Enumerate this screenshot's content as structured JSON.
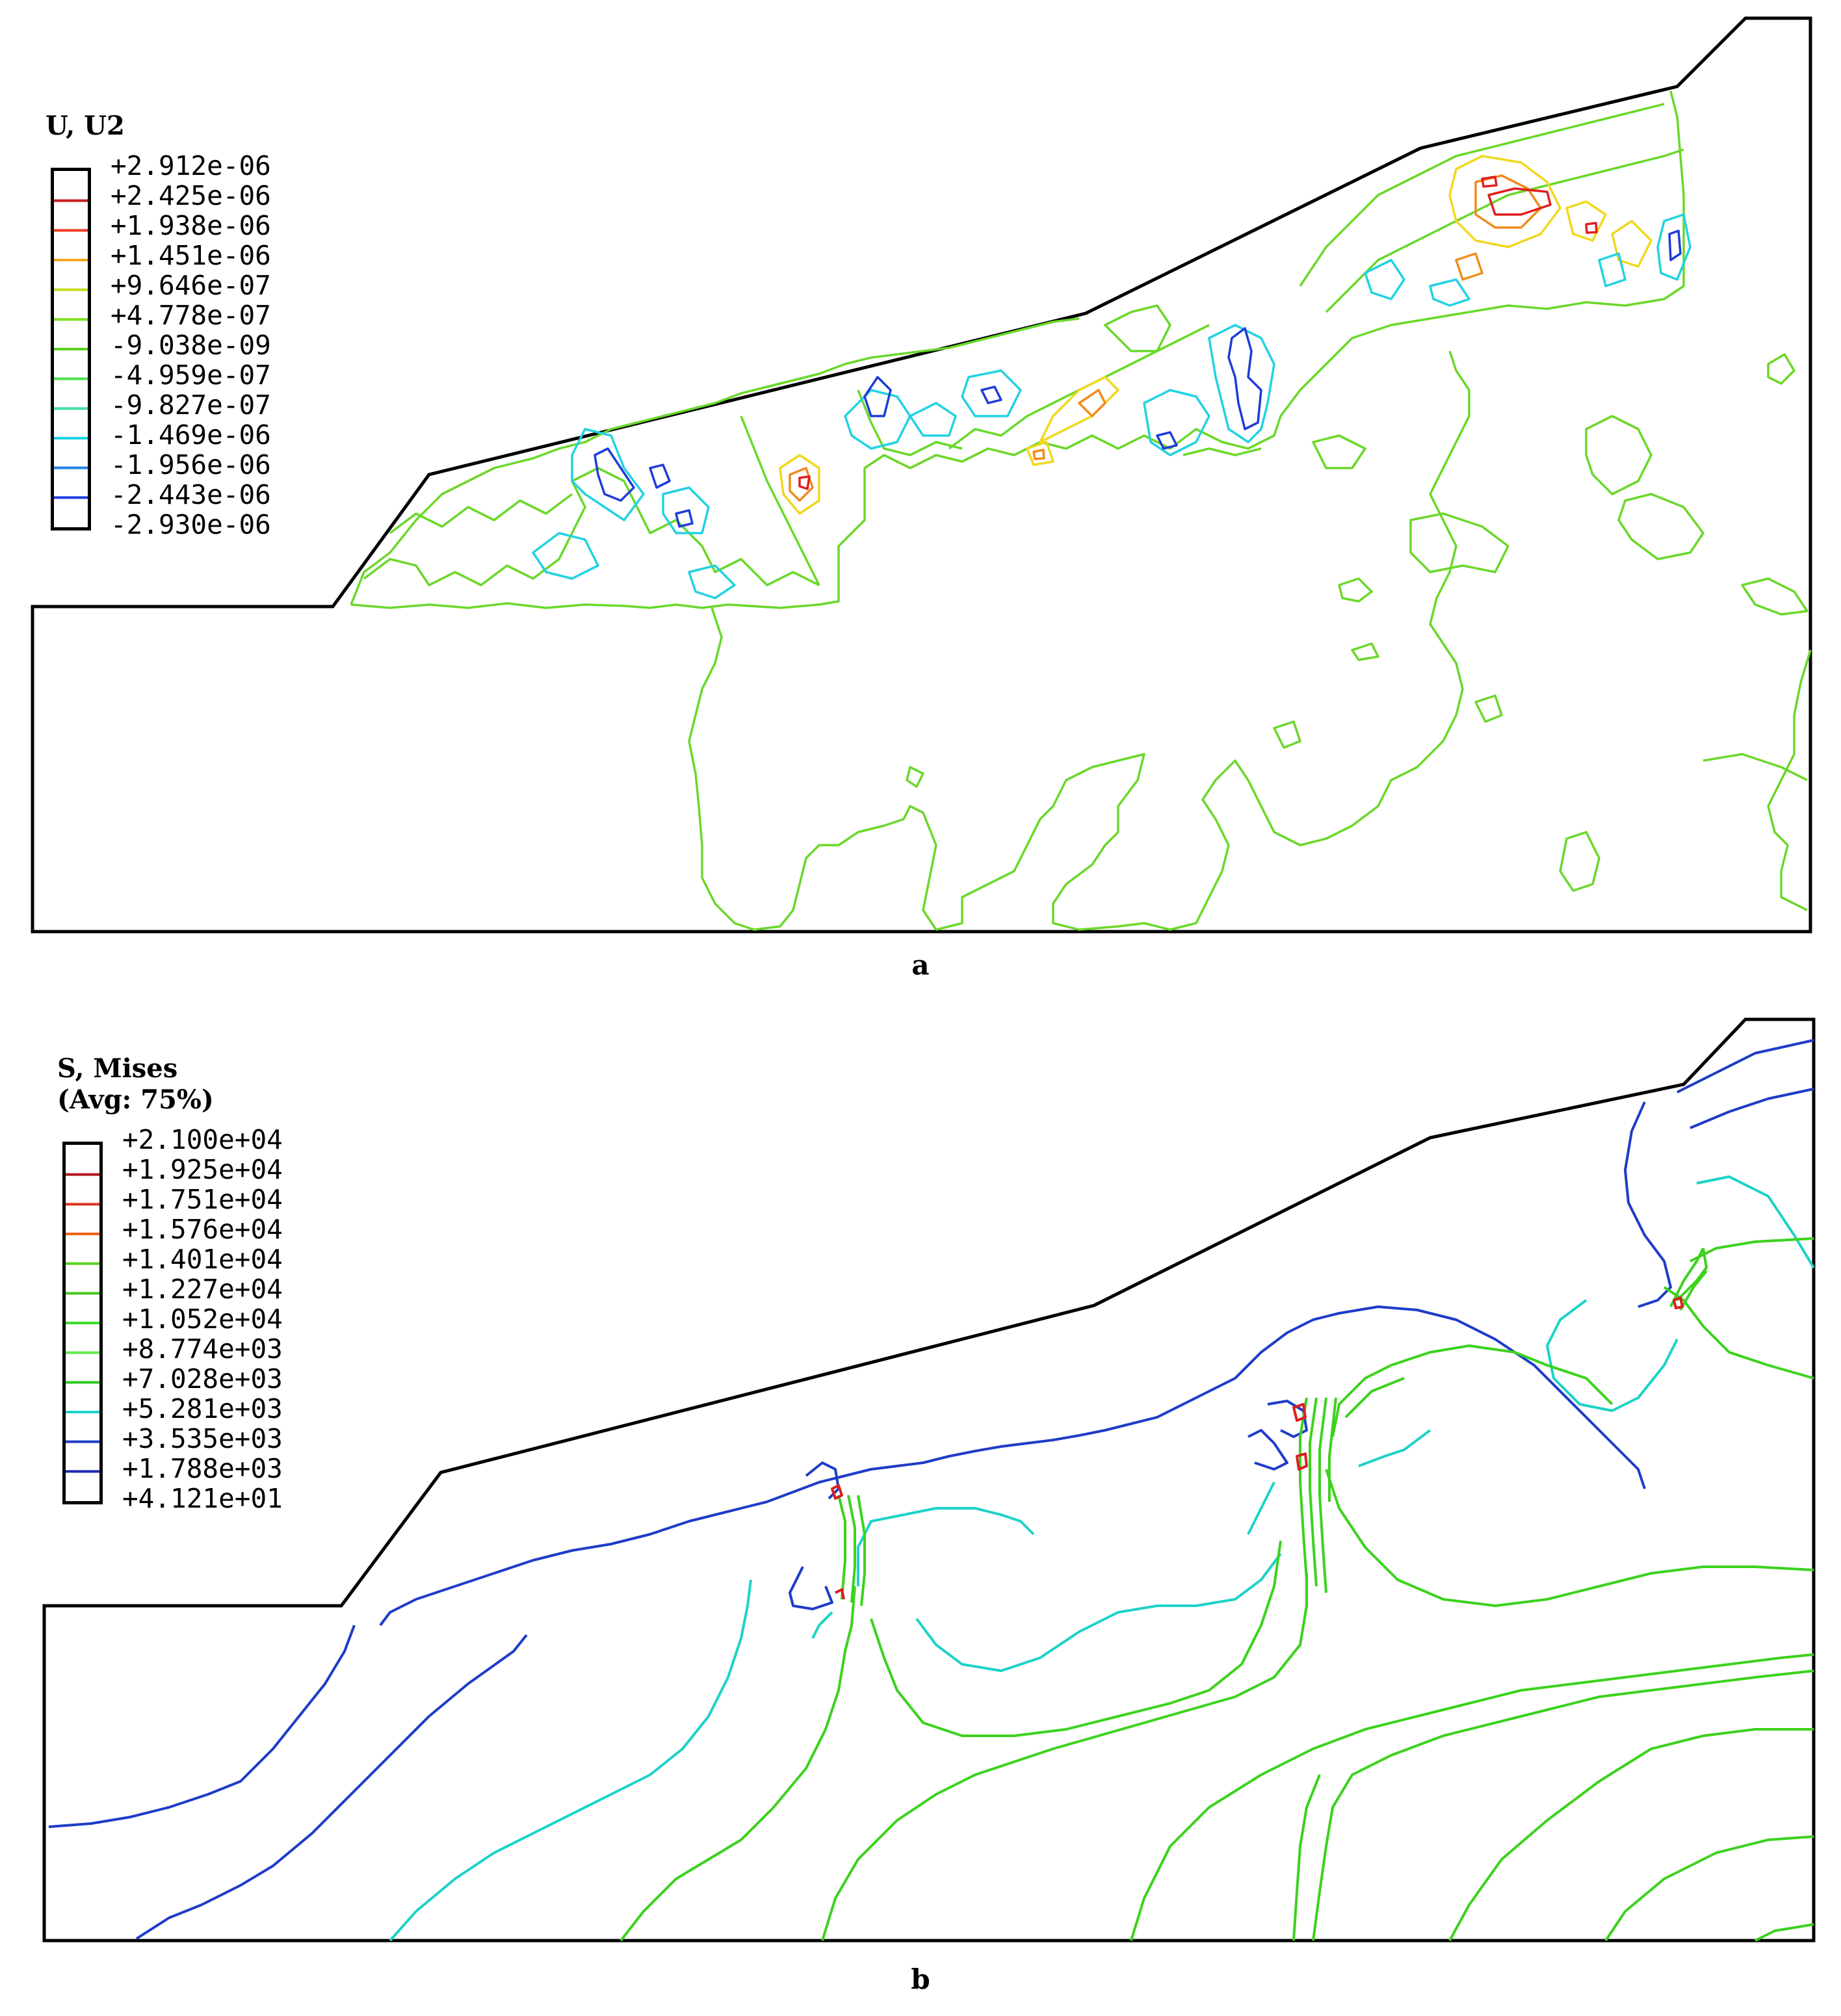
{
  "figure_a": {
    "caption": "a",
    "legend": {
      "title_line1": "U, U2",
      "title_line2": "",
      "values": [
        "+2.912e-06",
        "+2.425e-06",
        "+1.938e-06",
        "+1.451e-06",
        "+9.646e-07",
        "+4.778e-07",
        "-9.038e-09",
        "-4.959e-07",
        "-9.827e-07",
        "-1.469e-06",
        "-1.956e-06",
        "-2.443e-06",
        "-2.930e-06"
      ],
      "colors": [
        "#000000",
        "#c81e1e",
        "#f03a1e",
        "#f5a623",
        "#c8dc1e",
        "#7ce01e",
        "#5ad21e",
        "#4ee04e",
        "#40e0a0",
        "#1ed2e6",
        "#1e82e6",
        "#1e3ce6",
        "#000000"
      ]
    },
    "contour_colors": {
      "main": "#6ad82a",
      "blue": "#1e3cd8",
      "cyan": "#22d2e2",
      "yellow": "#f0d81e",
      "red": "#e01e1e",
      "orange": "#f08c1e"
    }
  },
  "figure_b": {
    "caption": "b",
    "legend": {
      "title_line1": "S, Mises",
      "title_line2": "(Avg: 75%)",
      "values": [
        "+2.100e+04",
        "+1.925e+04",
        "+1.751e+04",
        "+1.576e+04",
        "+1.401e+04",
        "+1.227e+04",
        "+1.052e+04",
        "+8.774e+03",
        "+7.028e+03",
        "+5.281e+03",
        "+3.535e+03",
        "+1.788e+03",
        "+4.121e+01"
      ],
      "colors": [
        "#000000",
        "#b4141e",
        "#dc321e",
        "#f06414",
        "#5ad21e",
        "#46c81e",
        "#3cdc28",
        "#64e650",
        "#2ec81e",
        "#1ed2c8",
        "#1e3cc8",
        "#1e28b4",
        "#000000"
      ]
    },
    "contour_colors": {
      "blue": "#1e3cc8",
      "cyan": "#1ed2c8",
      "green": "#3cd21e",
      "red": "#dc1e1e"
    }
  }
}
